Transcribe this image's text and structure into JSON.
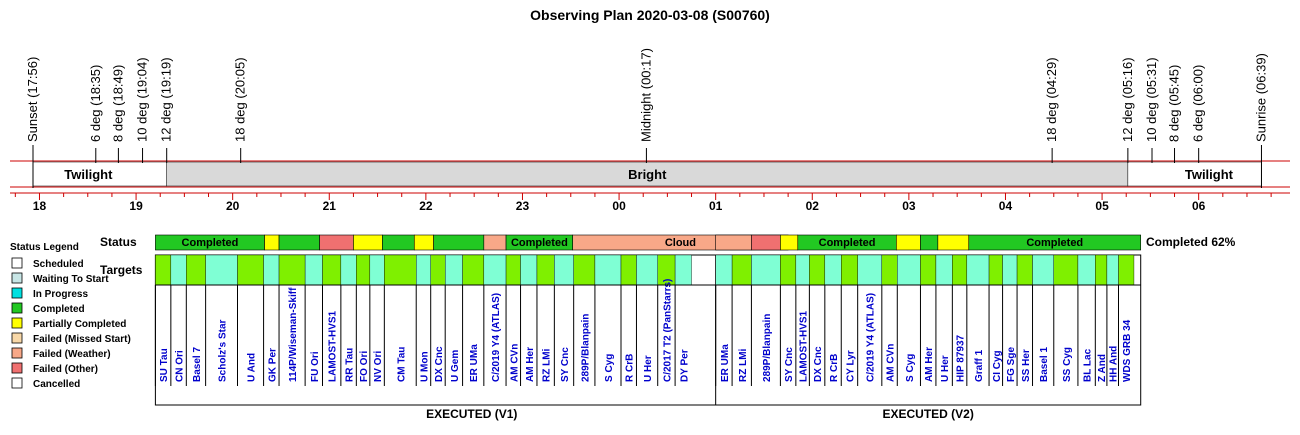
{
  "chart_data": {
    "type": "timeline",
    "title": "Observing Plan 2020-03-08 (S00760)",
    "events": [
      {
        "label": "Sunset (17:56)",
        "t": 17.933
      },
      {
        "label": "6 deg (18:35)",
        "t": 18.583
      },
      {
        "label": "8 deg (18:49)",
        "t": 18.817
      },
      {
        "label": "10 deg (19:04)",
        "t": 19.067
      },
      {
        "label": "12 deg (19:19)",
        "t": 19.317
      },
      {
        "label": "18 deg (20:05)",
        "t": 20.083
      },
      {
        "label": "Midnight (00:17)",
        "t": 24.283
      },
      {
        "label": "18 deg (04:29)",
        "t": 28.483
      },
      {
        "label": "12 deg (05:16)",
        "t": 29.267
      },
      {
        "label": "10 deg (05:31)",
        "t": 29.517
      },
      {
        "label": "8 deg (05:45)",
        "t": 29.75
      },
      {
        "label": "6 deg (06:00)",
        "t": 30.0
      },
      {
        "label": "Sunrise (06:39)",
        "t": 30.65
      }
    ],
    "bands": [
      {
        "label": "Twilight",
        "start": 17.933,
        "end": 19.317,
        "color": "#ffffff"
      },
      {
        "label": "Bright",
        "start": 19.317,
        "end": 29.267,
        "color": "#d9d9d9"
      },
      {
        "label": "Twilight",
        "start": 29.267,
        "end": 30.65,
        "color": "#ffffff"
      }
    ],
    "hours": [
      {
        "label": "18",
        "t": 18
      },
      {
        "label": "19",
        "t": 19
      },
      {
        "label": "20",
        "t": 20
      },
      {
        "label": "21",
        "t": 21
      },
      {
        "label": "22",
        "t": 22
      },
      {
        "label": "23",
        "t": 23
      },
      {
        "label": "00",
        "t": 24
      },
      {
        "label": "01",
        "t": 25
      },
      {
        "label": "02",
        "t": 26
      },
      {
        "label": "03",
        "t": 27
      },
      {
        "label": "04",
        "t": 28
      },
      {
        "label": "05",
        "t": 29
      },
      {
        "label": "06",
        "t": 30
      }
    ],
    "axis": {
      "t_min": 17.4,
      "t_max": 30.9
    },
    "row_labels": {
      "status": "Status",
      "targets": "Targets"
    },
    "status_colors": {
      "Scheduled": "#ffffff",
      "Waiting To Start": "#c8e6e6",
      "In Progress": "#00e0e0",
      "Completed": "#22c822",
      "Partially Completed": "#ffff00",
      "Failed (Missed Start)": "#f8d8a8",
      "Failed (Weather)": "#f8a888",
      "Failed (Other)": "#f07070",
      "Cancelled": "#ffffff"
    },
    "legend_title": "Status Legend",
    "legend": [
      "Scheduled",
      "Waiting To Start",
      "In Progress",
      "Completed",
      "Partially Completed",
      "Failed (Missed Start)",
      "Failed (Weather)",
      "Failed (Other)",
      "Cancelled"
    ],
    "completion": "Completed 62%",
    "sections": [
      {
        "label": "EXECUTED (V1)",
        "start": 19.2,
        "end": 25.75,
        "status": [
          {
            "start": 19.2,
            "end": 20.33,
            "status": "Completed",
            "label": "Completed"
          },
          {
            "start": 20.33,
            "end": 20.48,
            "status": "Partially Completed",
            "label": ""
          },
          {
            "start": 20.48,
            "end": 20.9,
            "status": "Completed",
            "label": ""
          },
          {
            "start": 20.9,
            "end": 21.25,
            "status": "Failed (Other)",
            "label": ""
          },
          {
            "start": 21.25,
            "end": 21.55,
            "status": "Partially Completed",
            "label": ""
          },
          {
            "start": 21.55,
            "end": 21.88,
            "status": "Completed",
            "label": ""
          },
          {
            "start": 21.88,
            "end": 22.08,
            "status": "Partially Completed",
            "label": ""
          },
          {
            "start": 22.08,
            "end": 22.6,
            "status": "Completed",
            "label": ""
          },
          {
            "start": 22.6,
            "end": 22.83,
            "status": "Failed (Weather)",
            "label": ""
          },
          {
            "start": 22.83,
            "end": 23.52,
            "status": "Completed",
            "label": "Completed"
          },
          {
            "start": 23.52,
            "end": 25.75,
            "status": "Failed (Weather)",
            "label": "Cloud"
          }
        ],
        "targets": [
          {
            "name": "SU Tau",
            "start": 19.2,
            "end": 19.36,
            "status": "Completed"
          },
          {
            "name": "CN Ori",
            "start": 19.36,
            "end": 19.52,
            "status": "Waiting To Start"
          },
          {
            "name": "Basel 7",
            "start": 19.52,
            "end": 19.72,
            "status": "Completed"
          },
          {
            "name": "Scholz's Star",
            "start": 19.72,
            "end": 20.05,
            "status": "Waiting To Start"
          },
          {
            "name": "U And",
            "start": 20.05,
            "end": 20.32,
            "status": "Completed"
          },
          {
            "name": "GK Per",
            "start": 20.32,
            "end": 20.48,
            "status": "Waiting To Start"
          },
          {
            "name": "114P/Wiseman-Skiff",
            "start": 20.48,
            "end": 20.75,
            "status": "Completed"
          },
          {
            "name": "FU Ori",
            "start": 20.75,
            "end": 20.93,
            "status": "Waiting To Start"
          },
          {
            "name": "LAMOST-HVS1",
            "start": 20.93,
            "end": 21.12,
            "status": "Completed"
          },
          {
            "name": "RR Tau",
            "start": 21.12,
            "end": 21.28,
            "status": "Waiting To Start"
          },
          {
            "name": "FO Ori",
            "start": 21.28,
            "end": 21.42,
            "status": "Completed"
          },
          {
            "name": "NV Ori",
            "start": 21.42,
            "end": 21.57,
            "status": "Waiting To Start"
          },
          {
            "name": "CM Tau",
            "start": 21.57,
            "end": 21.9,
            "status": "Completed"
          },
          {
            "name": "U Mon",
            "start": 21.9,
            "end": 22.05,
            "status": "Waiting To Start"
          },
          {
            "name": "DX Cnc",
            "start": 22.05,
            "end": 22.2,
            "status": "Completed"
          },
          {
            "name": "U Gem",
            "start": 22.2,
            "end": 22.38,
            "status": "Waiting To Start"
          },
          {
            "name": "ER UMa",
            "start": 22.38,
            "end": 22.6,
            "status": "Completed"
          },
          {
            "name": "C/2019 Y4 (ATLAS)",
            "start": 22.6,
            "end": 22.83,
            "status": "Waiting To Start"
          },
          {
            "name": "AM CVn",
            "start": 22.83,
            "end": 22.98,
            "status": "Completed"
          },
          {
            "name": "AM Her",
            "start": 22.98,
            "end": 23.15,
            "status": "Waiting To Start"
          },
          {
            "name": "RZ LMi",
            "start": 23.15,
            "end": 23.33,
            "status": "Completed"
          },
          {
            "name": "SY Cnc",
            "start": 23.33,
            "end": 23.53,
            "status": "Waiting To Start"
          },
          {
            "name": "289P/Blanpain",
            "start": 23.53,
            "end": 23.75,
            "status": "Completed"
          },
          {
            "name": "S Cyg",
            "start": 23.75,
            "end": 24.02,
            "status": "Waiting To Start"
          },
          {
            "name": "R CrB",
            "start": 24.02,
            "end": 24.18,
            "status": "Completed"
          },
          {
            "name": "U Her",
            "start": 24.18,
            "end": 24.4,
            "status": "Waiting To Start"
          },
          {
            "name": "C/2017 T2 (PanStarrs)",
            "start": 24.4,
            "end": 24.58,
            "status": "Completed"
          },
          {
            "name": "DY Per",
            "start": 24.58,
            "end": 24.75,
            "status": "Waiting To Start"
          }
        ]
      },
      {
        "label": "EXECUTED (V2)",
        "start": 25.0,
        "end": 29.4,
        "status": [
          {
            "start": 25.0,
            "end": 25.37,
            "status": "Failed (Weather)",
            "label": ""
          },
          {
            "start": 25.37,
            "end": 25.67,
            "status": "Failed (Other)",
            "label": ""
          },
          {
            "start": 25.67,
            "end": 25.85,
            "status": "Partially Completed",
            "label": ""
          },
          {
            "start": 25.85,
            "end": 26.87,
            "status": "Completed",
            "label": "Completed"
          },
          {
            "start": 26.87,
            "end": 27.12,
            "status": "Partially Completed",
            "label": ""
          },
          {
            "start": 27.12,
            "end": 27.3,
            "status": "Completed",
            "label": ""
          },
          {
            "start": 27.3,
            "end": 27.62,
            "status": "Partially Completed",
            "label": ""
          },
          {
            "start": 27.62,
            "end": 29.4,
            "status": "Completed",
            "label": "Completed"
          }
        ],
        "targets": [
          {
            "name": "ER UMa",
            "start": 25.0,
            "end": 25.17,
            "status": "Waiting To Start"
          },
          {
            "name": "RZ LMi",
            "start": 25.17,
            "end": 25.37,
            "status": "Completed"
          },
          {
            "name": "289P/Blanpain",
            "start": 25.37,
            "end": 25.67,
            "status": "Waiting To Start"
          },
          {
            "name": "SY Cnc",
            "start": 25.67,
            "end": 25.83,
            "status": "Completed"
          },
          {
            "name": "LAMOST-HVS1",
            "start": 25.83,
            "end": 25.97,
            "status": "Waiting To Start"
          },
          {
            "name": "DX Cnc",
            "start": 25.97,
            "end": 26.13,
            "status": "Completed"
          },
          {
            "name": "R CrB",
            "start": 26.13,
            "end": 26.3,
            "status": "Waiting To Start"
          },
          {
            "name": "CY Lyr",
            "start": 26.3,
            "end": 26.47,
            "status": "Completed"
          },
          {
            "name": "C/2019 Y4 (ATLAS)",
            "start": 26.47,
            "end": 26.72,
            "status": "Waiting To Start"
          },
          {
            "name": "AM CVn",
            "start": 26.72,
            "end": 26.88,
            "status": "Completed"
          },
          {
            "name": "S Cyg",
            "start": 26.88,
            "end": 27.12,
            "status": "Waiting To Start"
          },
          {
            "name": "AM Her",
            "start": 27.12,
            "end": 27.28,
            "status": "Completed"
          },
          {
            "name": "U Her",
            "start": 27.28,
            "end": 27.45,
            "status": "Waiting To Start"
          },
          {
            "name": "HIP 87937",
            "start": 27.45,
            "end": 27.6,
            "status": "Completed"
          },
          {
            "name": "Graff 1",
            "start": 27.6,
            "end": 27.83,
            "status": "Waiting To Start"
          },
          {
            "name": "CI Cyg",
            "start": 27.83,
            "end": 27.97,
            "status": "Completed"
          },
          {
            "name": "FG Sge",
            "start": 27.97,
            "end": 28.12,
            "status": "Waiting To Start"
          },
          {
            "name": "SS Her",
            "start": 28.12,
            "end": 28.28,
            "status": "Completed"
          },
          {
            "name": "Basel 1",
            "start": 28.28,
            "end": 28.5,
            "status": "Waiting To Start"
          },
          {
            "name": "SS Cyg",
            "start": 28.5,
            "end": 28.75,
            "status": "Completed"
          },
          {
            "name": "BL Lac",
            "start": 28.75,
            "end": 28.93,
            "status": "Waiting To Start"
          },
          {
            "name": "Z And",
            "start": 28.93,
            "end": 29.05,
            "status": "Completed"
          },
          {
            "name": "HH And",
            "start": 29.05,
            "end": 29.17,
            "status": "Waiting To Start"
          },
          {
            "name": "WDS GRB 34",
            "start": 29.17,
            "end": 29.33,
            "status": "Completed"
          }
        ]
      }
    ]
  }
}
